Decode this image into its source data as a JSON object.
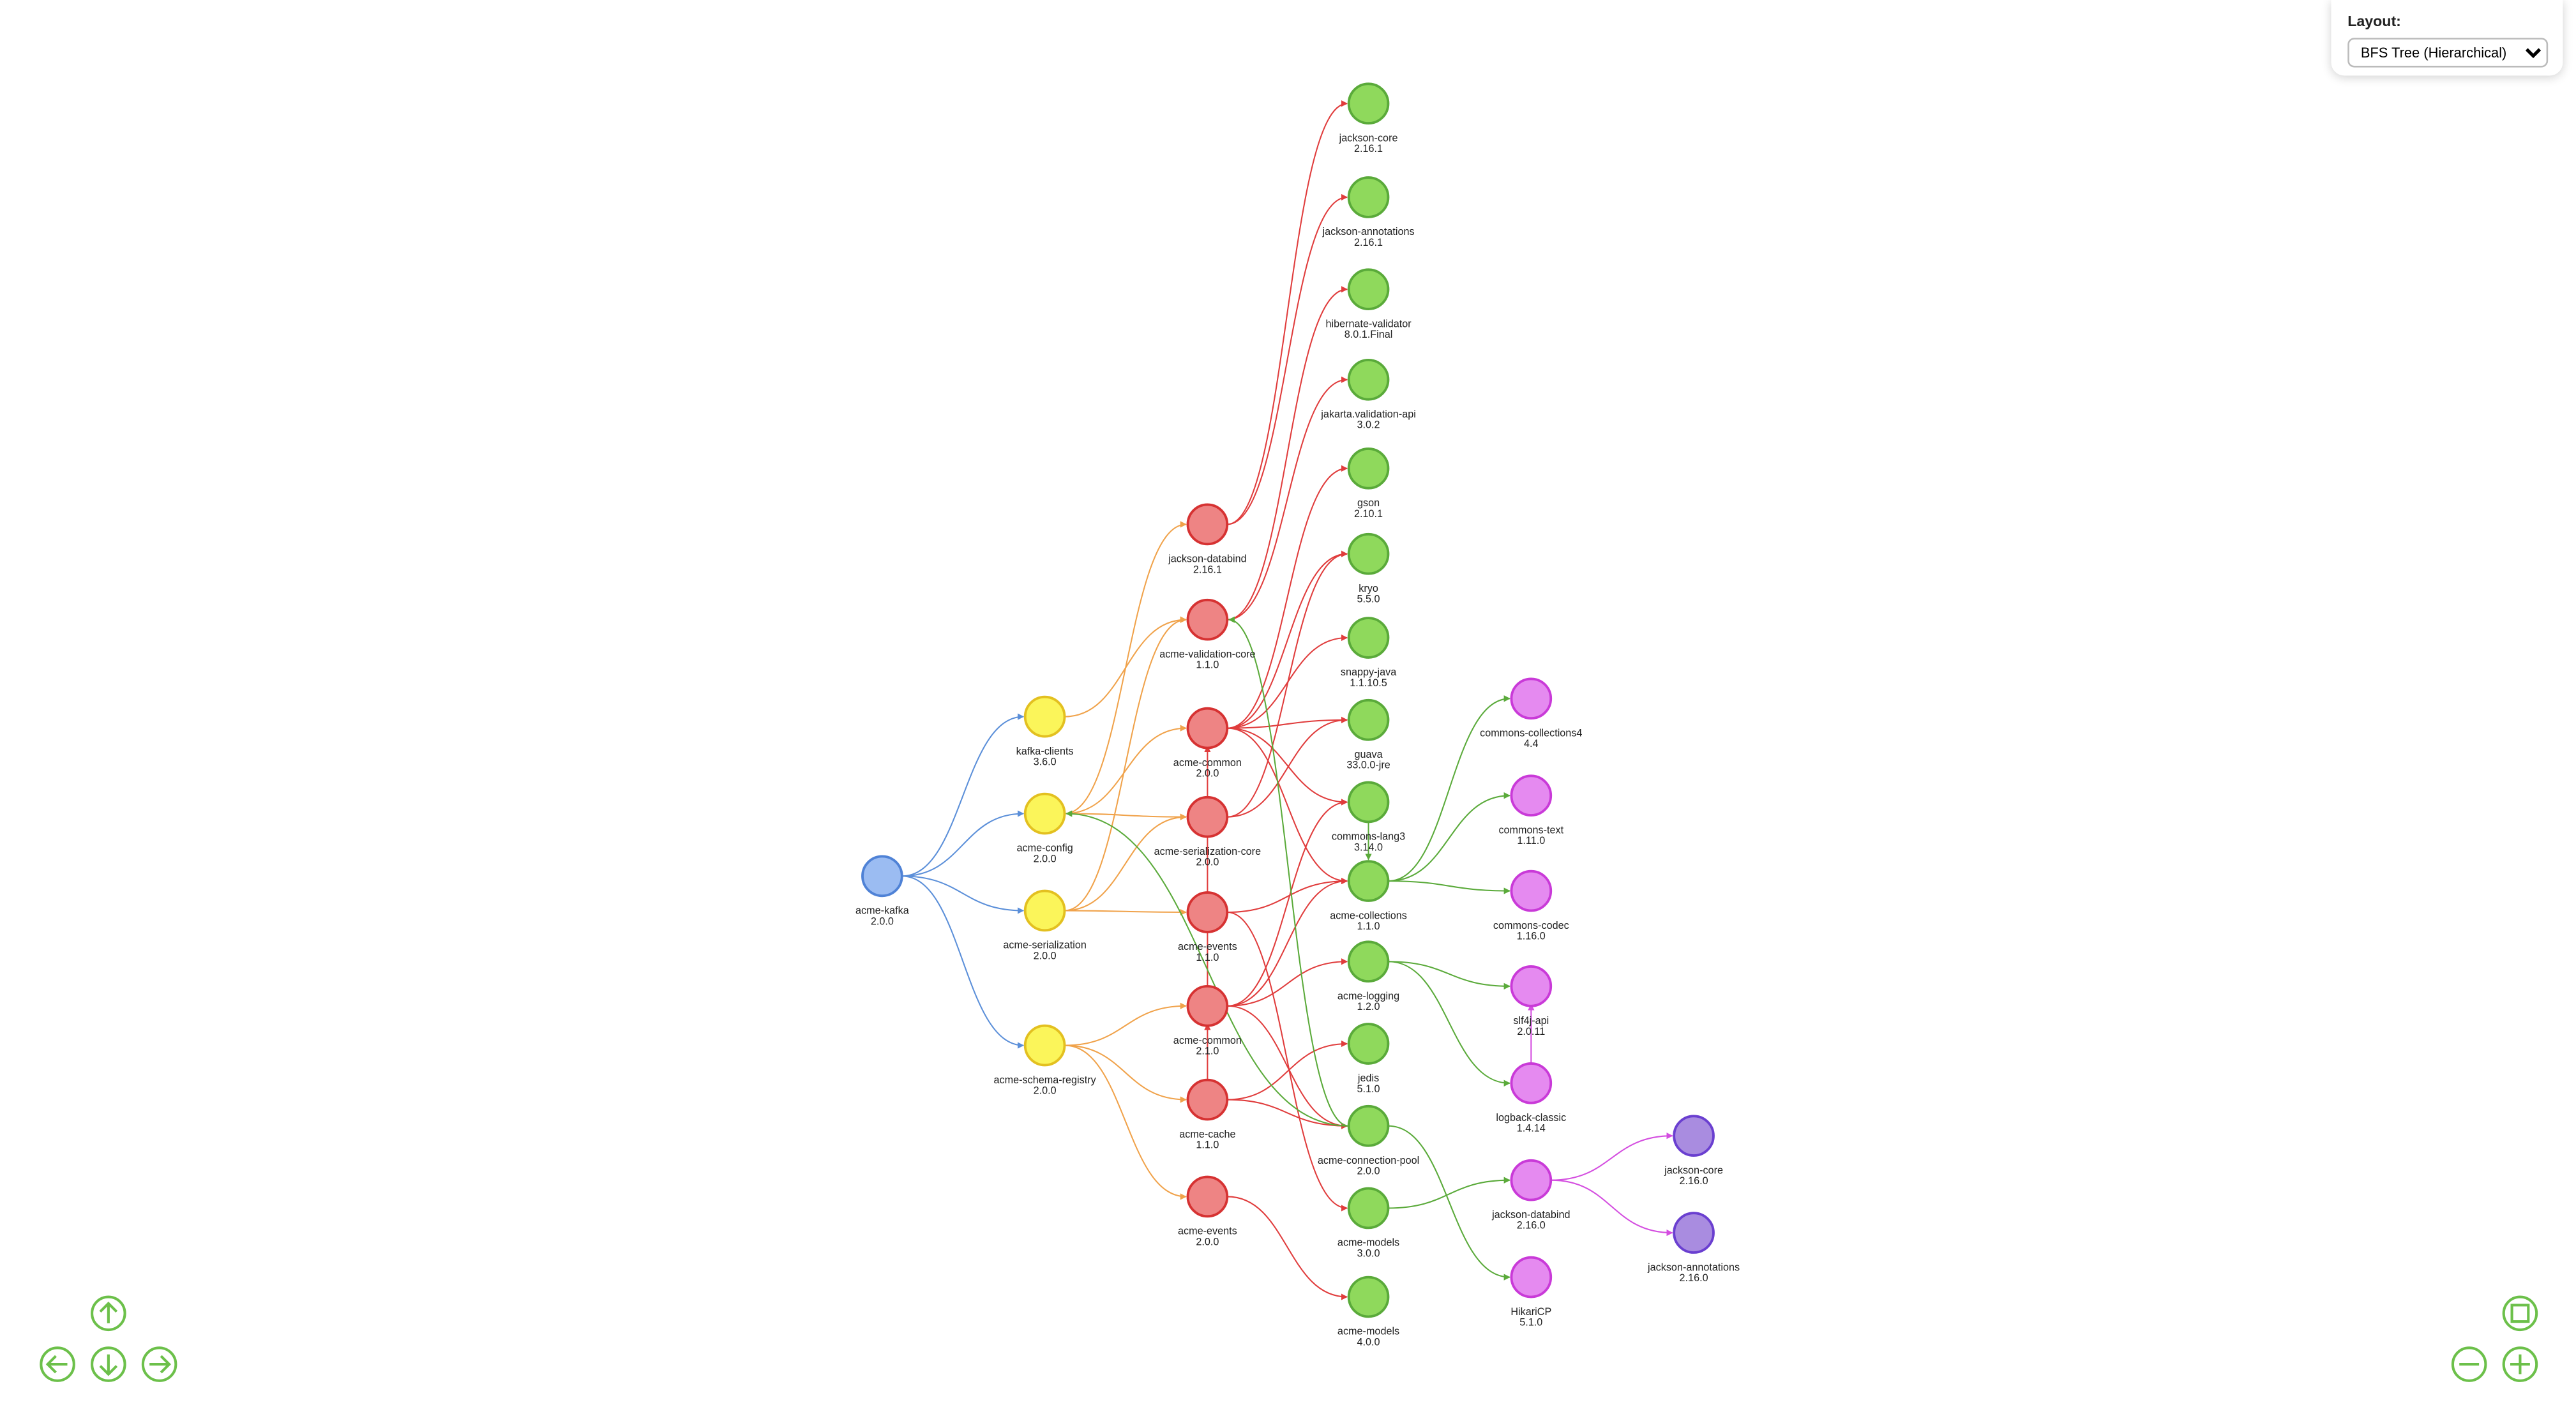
{
  "layout_panel": {
    "label": "Layout:",
    "selected": "BFS Tree (Hierarchical)"
  },
  "nodes": [
    {
      "label": "acme-kafka",
      "version": "2.0.0"
    },
    {
      "label": "kafka-clients",
      "version": "3.6.0"
    },
    {
      "label": "acme-config",
      "version": "2.0.0"
    },
    {
      "label": "acme-serialization",
      "version": "2.0.0"
    },
    {
      "label": "acme-schema-registry",
      "version": "2.0.0"
    },
    {
      "label": "jackson-databind",
      "version": "2.16.1"
    },
    {
      "label": "acme-validation-core",
      "version": "1.1.0"
    },
    {
      "label": "acme-common",
      "version": "2.0.0"
    },
    {
      "label": "acme-serialization-core",
      "version": "2.0.0"
    },
    {
      "label": "acme-events",
      "version": "1.1.0"
    },
    {
      "label": "acme-common",
      "version": "2.1.0"
    },
    {
      "label": "acme-cache",
      "version": "1.1.0"
    },
    {
      "label": "acme-events",
      "version": "2.0.0"
    },
    {
      "label": "jackson-core",
      "version": "2.16.1"
    },
    {
      "label": "jackson-annotations",
      "version": "2.16.1"
    },
    {
      "label": "hibernate-validator",
      "version": "8.0.1.Final"
    },
    {
      "label": "jakarta.validation-api",
      "version": "3.0.2"
    },
    {
      "label": "gson",
      "version": "2.10.1"
    },
    {
      "label": "kryo",
      "version": "5.5.0"
    },
    {
      "label": "snappy-java",
      "version": "1.1.10.5"
    },
    {
      "label": "guava",
      "version": "33.0.0-jre"
    },
    {
      "label": "commons-lang3",
      "version": "3.14.0"
    },
    {
      "label": "acme-collections",
      "version": "1.1.0"
    },
    {
      "label": "acme-logging",
      "version": "1.2.0"
    },
    {
      "label": "jedis",
      "version": "5.1.0"
    },
    {
      "label": "acme-connection-pool",
      "version": "2.0.0"
    },
    {
      "label": "acme-models",
      "version": "3.0.0"
    },
    {
      "label": "acme-models",
      "version": "4.0.0"
    },
    {
      "label": "commons-collections4",
      "version": "4.4"
    },
    {
      "label": "commons-text",
      "version": "1.11.0"
    },
    {
      "label": "commons-codec",
      "version": "1.16.0"
    },
    {
      "label": "slf4j-api",
      "version": "2.0.11"
    },
    {
      "label": "logback-classic",
      "version": "1.4.14"
    },
    {
      "label": "jackson-databind",
      "version": "2.16.0"
    },
    {
      "label": "HikariCP",
      "version": "5.1.0"
    },
    {
      "label": "jackson-core",
      "version": "2.16.0"
    },
    {
      "label": "jackson-annotations",
      "version": "2.16.0"
    }
  ]
}
